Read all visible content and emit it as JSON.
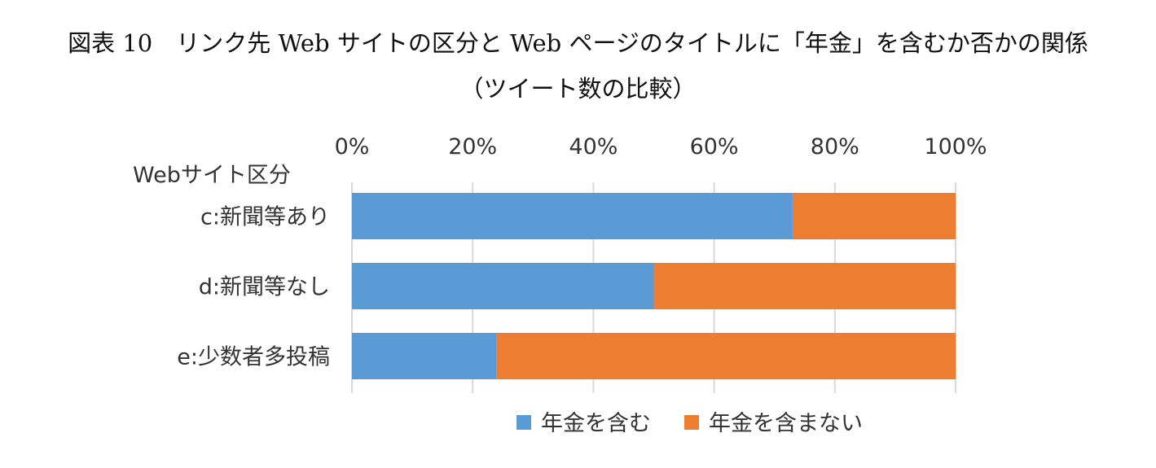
{
  "chart_data": {
    "type": "bar",
    "orientation": "horizontal",
    "stacked": "percent",
    "title": "図表 10　リンク先 Web サイトの区分と Web ページのタイトルに「年金」を含むか否かの関係",
    "subtitle": "（ツイート数の比較）",
    "ylabel": "Webサイト区分",
    "categories": [
      "c:新聞等あり",
      "d:新聞等なし",
      "e:少数者多投稿"
    ],
    "series": [
      {
        "name": "年金を含む",
        "color": "#5b9bd5",
        "values": [
          73,
          50,
          24
        ]
      },
      {
        "name": "年金を含まない",
        "color": "#ed7d31",
        "values": [
          27,
          50,
          76
        ]
      }
    ],
    "xlim": [
      0,
      100
    ],
    "xticks": [
      "0%",
      "20%",
      "40%",
      "60%",
      "80%",
      "100%"
    ],
    "legend": "bottom",
    "grid": true
  }
}
